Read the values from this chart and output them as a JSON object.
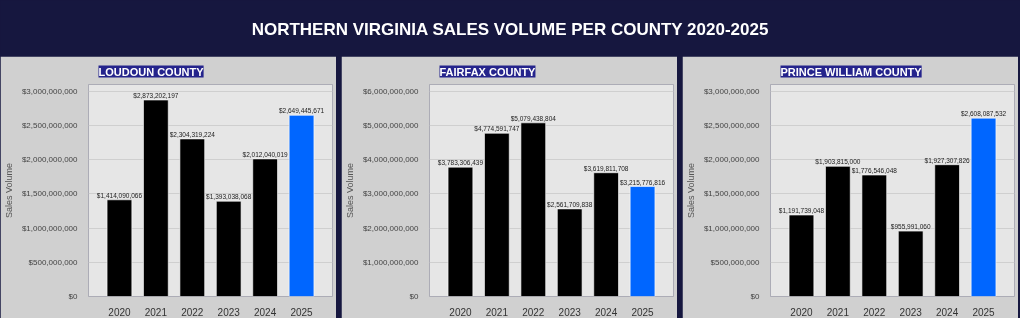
{
  "chart_data": [
    {
      "type": "other",
      "title": "NORTHERN VIRGINIA SALES VOLUME PER COUNTY 2020-2025"
    },
    {
      "type": "bar",
      "title": "LOUDOUN COUNTY",
      "ylabel": "Sales Volume",
      "categories": [
        "2020",
        "2021",
        "2022",
        "2023",
        "2024",
        "2025"
      ],
      "values": [
        1414090066,
        2873202197,
        2304319224,
        1393038068,
        2012040019,
        2649445671
      ],
      "colors": [
        "#000000",
        "#000000",
        "#000000",
        "#000000",
        "#000000",
        "#0066ff"
      ],
      "value_labels": [
        "$1,414,090,066",
        "$2,873,202,197",
        "$2,304,319,224",
        "$1,393,038,068",
        "$2,012,040,019",
        "$2,649,445,671"
      ],
      "ylim": [
        0,
        3100000000
      ],
      "yticks": [
        {
          "value": 0,
          "label": "$0"
        },
        {
          "value": 500000000,
          "label": "$500,000,000"
        },
        {
          "value": 1000000000,
          "label": "$1,000,000,000"
        },
        {
          "value": 1500000000,
          "label": "$1,500,000,000"
        },
        {
          "value": 2000000000,
          "label": "$2,000,000,000"
        },
        {
          "value": 2500000000,
          "label": "$2,500,000,000"
        },
        {
          "value": 3000000000,
          "label": "$3,000,000,000"
        }
      ],
      "grid": "y"
    },
    {
      "type": "bar",
      "title": "FAIRFAX COUNTY",
      "ylabel": "Sales Volume",
      "categories": [
        "2020",
        "2021",
        "2022",
        "2023",
        "2024",
        "2025"
      ],
      "values": [
        3783306439,
        4774591747,
        5079438804,
        2561709838,
        3619811708,
        3215776816
      ],
      "colors": [
        "#000000",
        "#000000",
        "#000000",
        "#000000",
        "#000000",
        "#0066ff"
      ],
      "value_labels": [
        "$3,783,306,439",
        "$4,774,591,747",
        "$5,079,438,804",
        "$2,561,709,838",
        "$3,619,811,708",
        "$3,215,776,816"
      ],
      "ylim": [
        0,
        6200000000
      ],
      "yticks": [
        {
          "value": 0,
          "label": "$0"
        },
        {
          "value": 1000000000,
          "label": "$1,000,000,000"
        },
        {
          "value": 2000000000,
          "label": "$2,000,000,000"
        },
        {
          "value": 3000000000,
          "label": "$3,000,000,000"
        },
        {
          "value": 4000000000,
          "label": "$4,000,000,000"
        },
        {
          "value": 5000000000,
          "label": "$5,000,000,000"
        },
        {
          "value": 6000000000,
          "label": "$6,000,000,000"
        }
      ],
      "grid": "y"
    },
    {
      "type": "bar",
      "title": "PRINCE WILLIAM COUNTY",
      "ylabel": "Sales Volume",
      "categories": [
        "2020",
        "2021",
        "2022",
        "2023",
        "2024",
        "2025"
      ],
      "values": [
        1191739048,
        1903815000,
        1776546048,
        955991060,
        1927307826,
        2608087532
      ],
      "colors": [
        "#000000",
        "#000000",
        "#000000",
        "#000000",
        "#000000",
        "#0066ff"
      ],
      "value_labels": [
        "$1,191,739,048",
        "$1,903,815,000",
        "$1,776,546,048",
        "$955,991,060",
        "$1,927,307,826",
        "$2,608,087,532"
      ],
      "ylim": [
        0,
        3100000000
      ],
      "yticks": [
        {
          "value": 0,
          "label": "$0"
        },
        {
          "value": 500000000,
          "label": "$500,000,000"
        },
        {
          "value": 1000000000,
          "label": "$1,000,000,000"
        },
        {
          "value": 1500000000,
          "label": "$1,500,000,000"
        },
        {
          "value": 2000000000,
          "label": "$2,000,000,000"
        },
        {
          "value": 2500000000,
          "label": "$2,500,000,000"
        },
        {
          "value": 3000000000,
          "label": "$3,000,000,000"
        }
      ],
      "grid": "y"
    }
  ]
}
